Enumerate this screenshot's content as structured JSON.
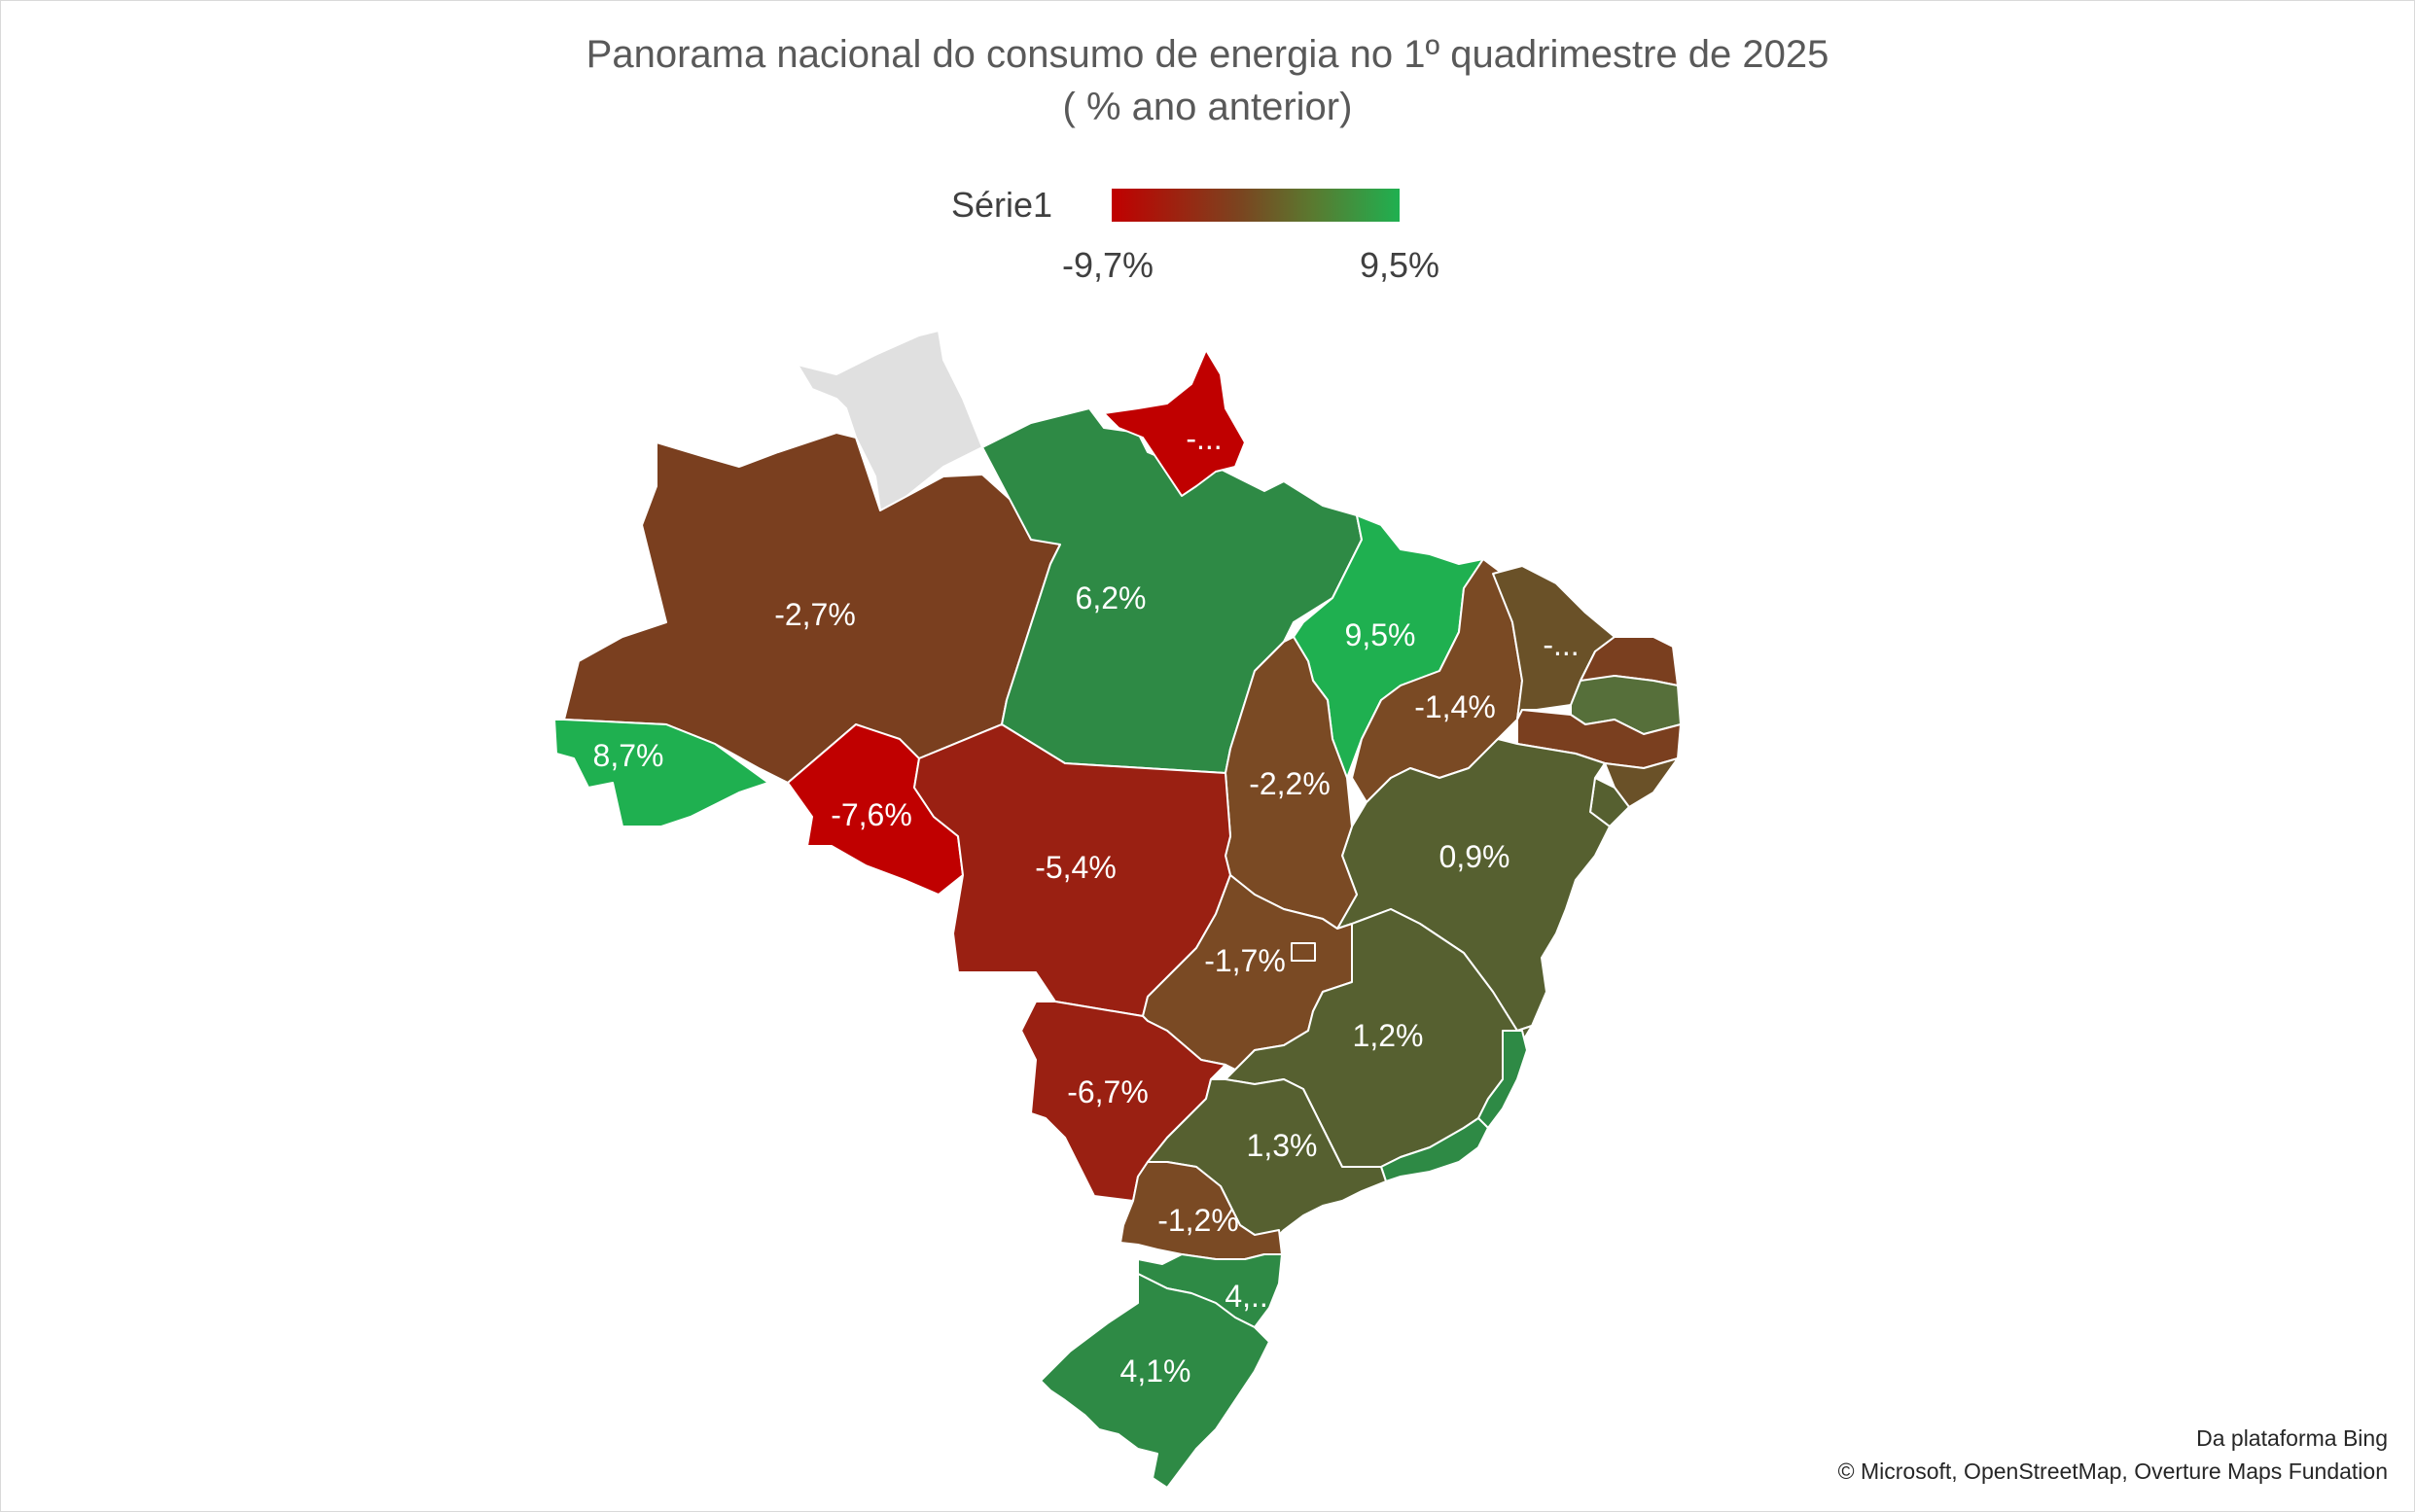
{
  "chart": {
    "title_line1": "Panorama nacional do consumo de energia no 1º quadrimestre de 2025",
    "title_line2": "( % ano anterior)"
  },
  "legend": {
    "series_name": "Série1",
    "min_label": "-9,7%",
    "max_label": "9,5%",
    "min_color": "#c00000",
    "max_color": "#1fb050"
  },
  "map_labels": {
    "amazonas": "-2,7%",
    "para": "6,2%",
    "amapa": "-...",
    "maranhao": "9,5%",
    "ceara": "-...",
    "piaui": "-1,4%",
    "tocantins": "-2,2%",
    "acre": "8,7%",
    "rondonia": "-7,6%",
    "mato_grosso": "-5,4%",
    "bahia": "0,9%",
    "goias": "-1,7%",
    "minas_gerais": "1,2%",
    "mato_grosso_do_sul": "-6,7%",
    "sao_paulo": "1,3%",
    "parana": "-1,2%",
    "santa_catarina": "4,...",
    "rio_grande_do_sul": "4,1%"
  },
  "colors": {
    "no_data": "#e0e0e0",
    "dark_red": "#c00000",
    "red_brown": "#9a2012",
    "brown": "#7a3f1f",
    "olive_brown": "#6d4a25",
    "olive": "#566030",
    "green": "#2e8a45",
    "bright_green": "#1fb050"
  },
  "attribution": {
    "line1": "Da plataforma Bing",
    "line2": "© Microsoft, OpenStreetMap, Overture Maps Fundation"
  }
}
